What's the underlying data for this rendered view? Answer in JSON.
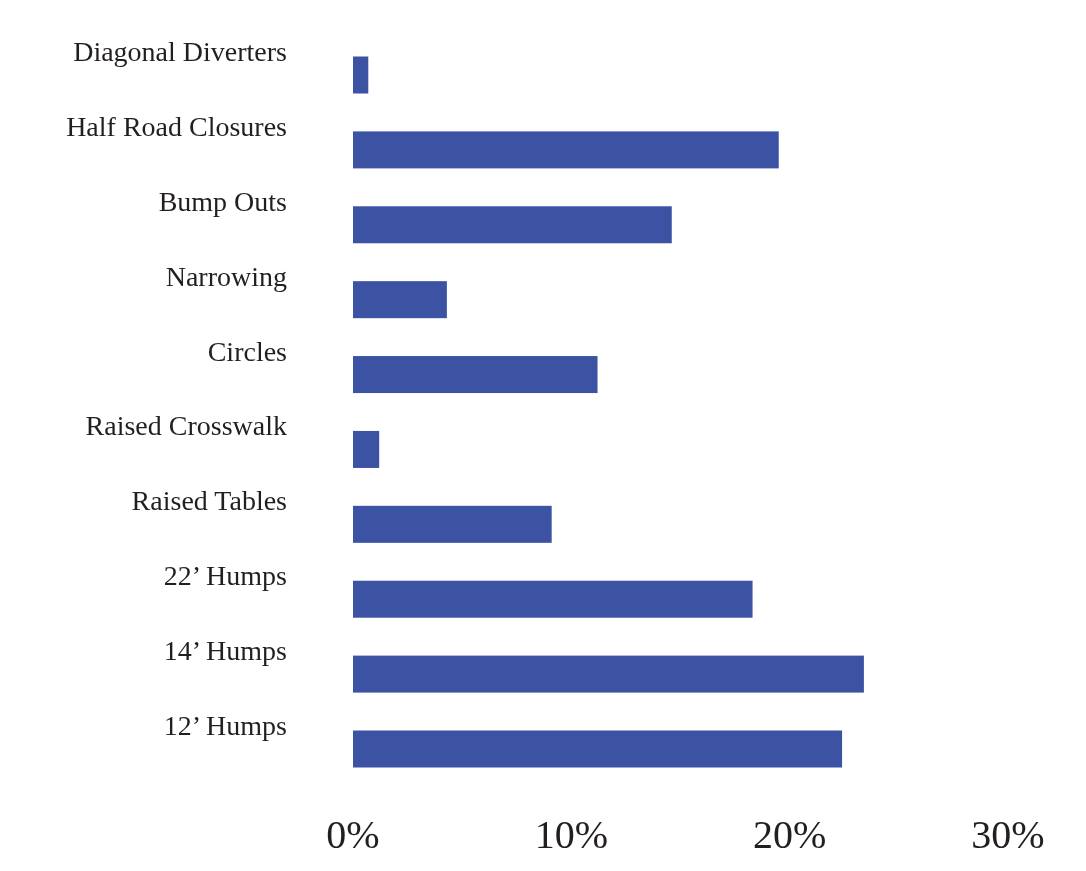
{
  "chart_data": {
    "type": "bar",
    "orientation": "horizontal",
    "categories": [
      "Diagonal Diverters",
      "Half Road Closures",
      "Bump Outs",
      "Narrowing",
      "Circles",
      "Raised Crosswalk",
      "Raised Tables",
      "22’ Humps",
      "14’ Humps",
      "12’ Humps"
    ],
    "values": [
      0.7,
      19.5,
      14.6,
      4.3,
      11.2,
      1.2,
      9.1,
      18.3,
      23.4,
      22.4
    ],
    "color": "#3c53a4",
    "xlim": [
      0,
      30
    ],
    "xticks": [
      {
        "value": 0,
        "label": "0%"
      },
      {
        "value": 10,
        "label": "10%"
      },
      {
        "value": 20,
        "label": "20%"
      },
      {
        "value": 30,
        "label": "30%"
      }
    ],
    "grid": false
  }
}
